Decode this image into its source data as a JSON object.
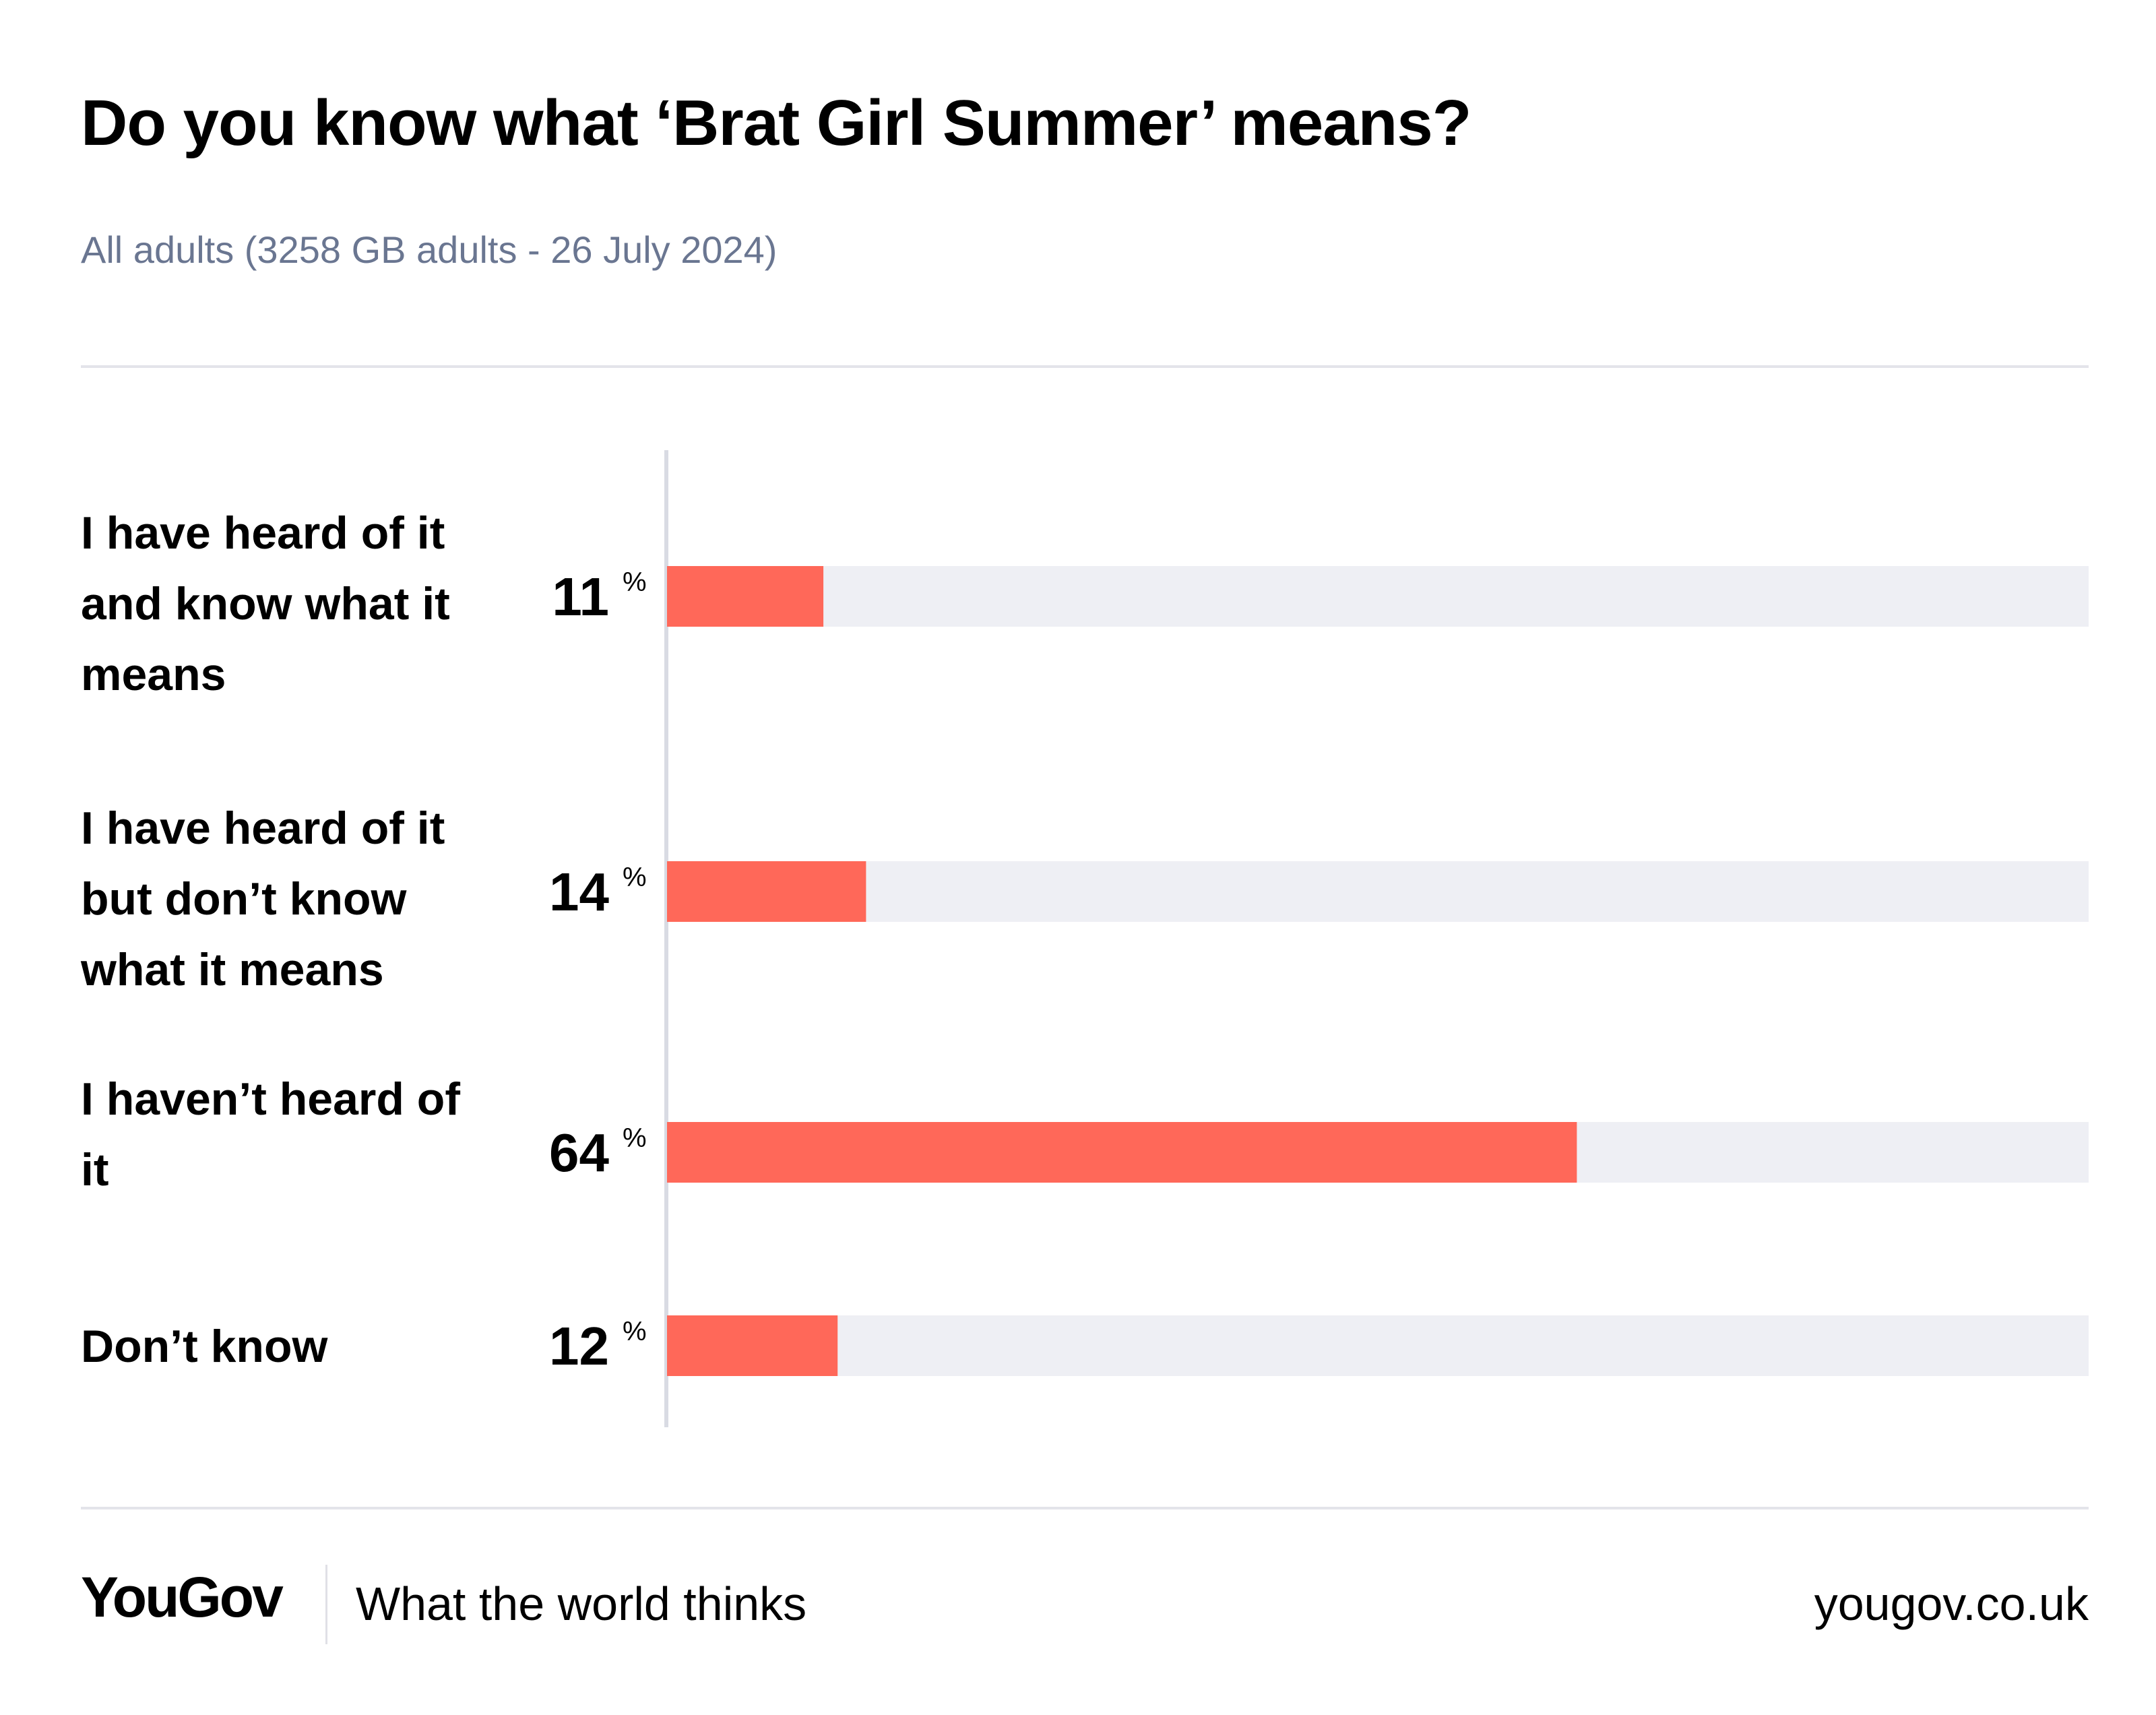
{
  "header": {
    "title": "Do you know what ‘Brat Girl Summer’ means?",
    "subtitle": "All adults (3258 GB adults - 26 July 2024)"
  },
  "chart_data": {
    "type": "bar",
    "orientation": "horizontal",
    "title": "Do you know what ‘Brat Girl Summer’ means?",
    "subtitle": "All adults (3258 GB adults - 26 July 2024)",
    "categories": [
      [
        "I have heard of it",
        "and know what it",
        "means"
      ],
      [
        "I have heard of it",
        "but don’t know",
        "what it means"
      ],
      [
        "I haven’t heard of",
        "it"
      ],
      [
        "Don’t know"
      ]
    ],
    "values": [
      11,
      14,
      64,
      12
    ],
    "unit": "%",
    "xlim": [
      0,
      100
    ],
    "grid": false,
    "colors": {
      "bar": "#ff6859",
      "track": "#eeeff4",
      "axis": "#d9dbe3"
    }
  },
  "footer": {
    "brand": "YouGov",
    "tagline": "What the world thinks",
    "url": "yougov.co.uk"
  }
}
